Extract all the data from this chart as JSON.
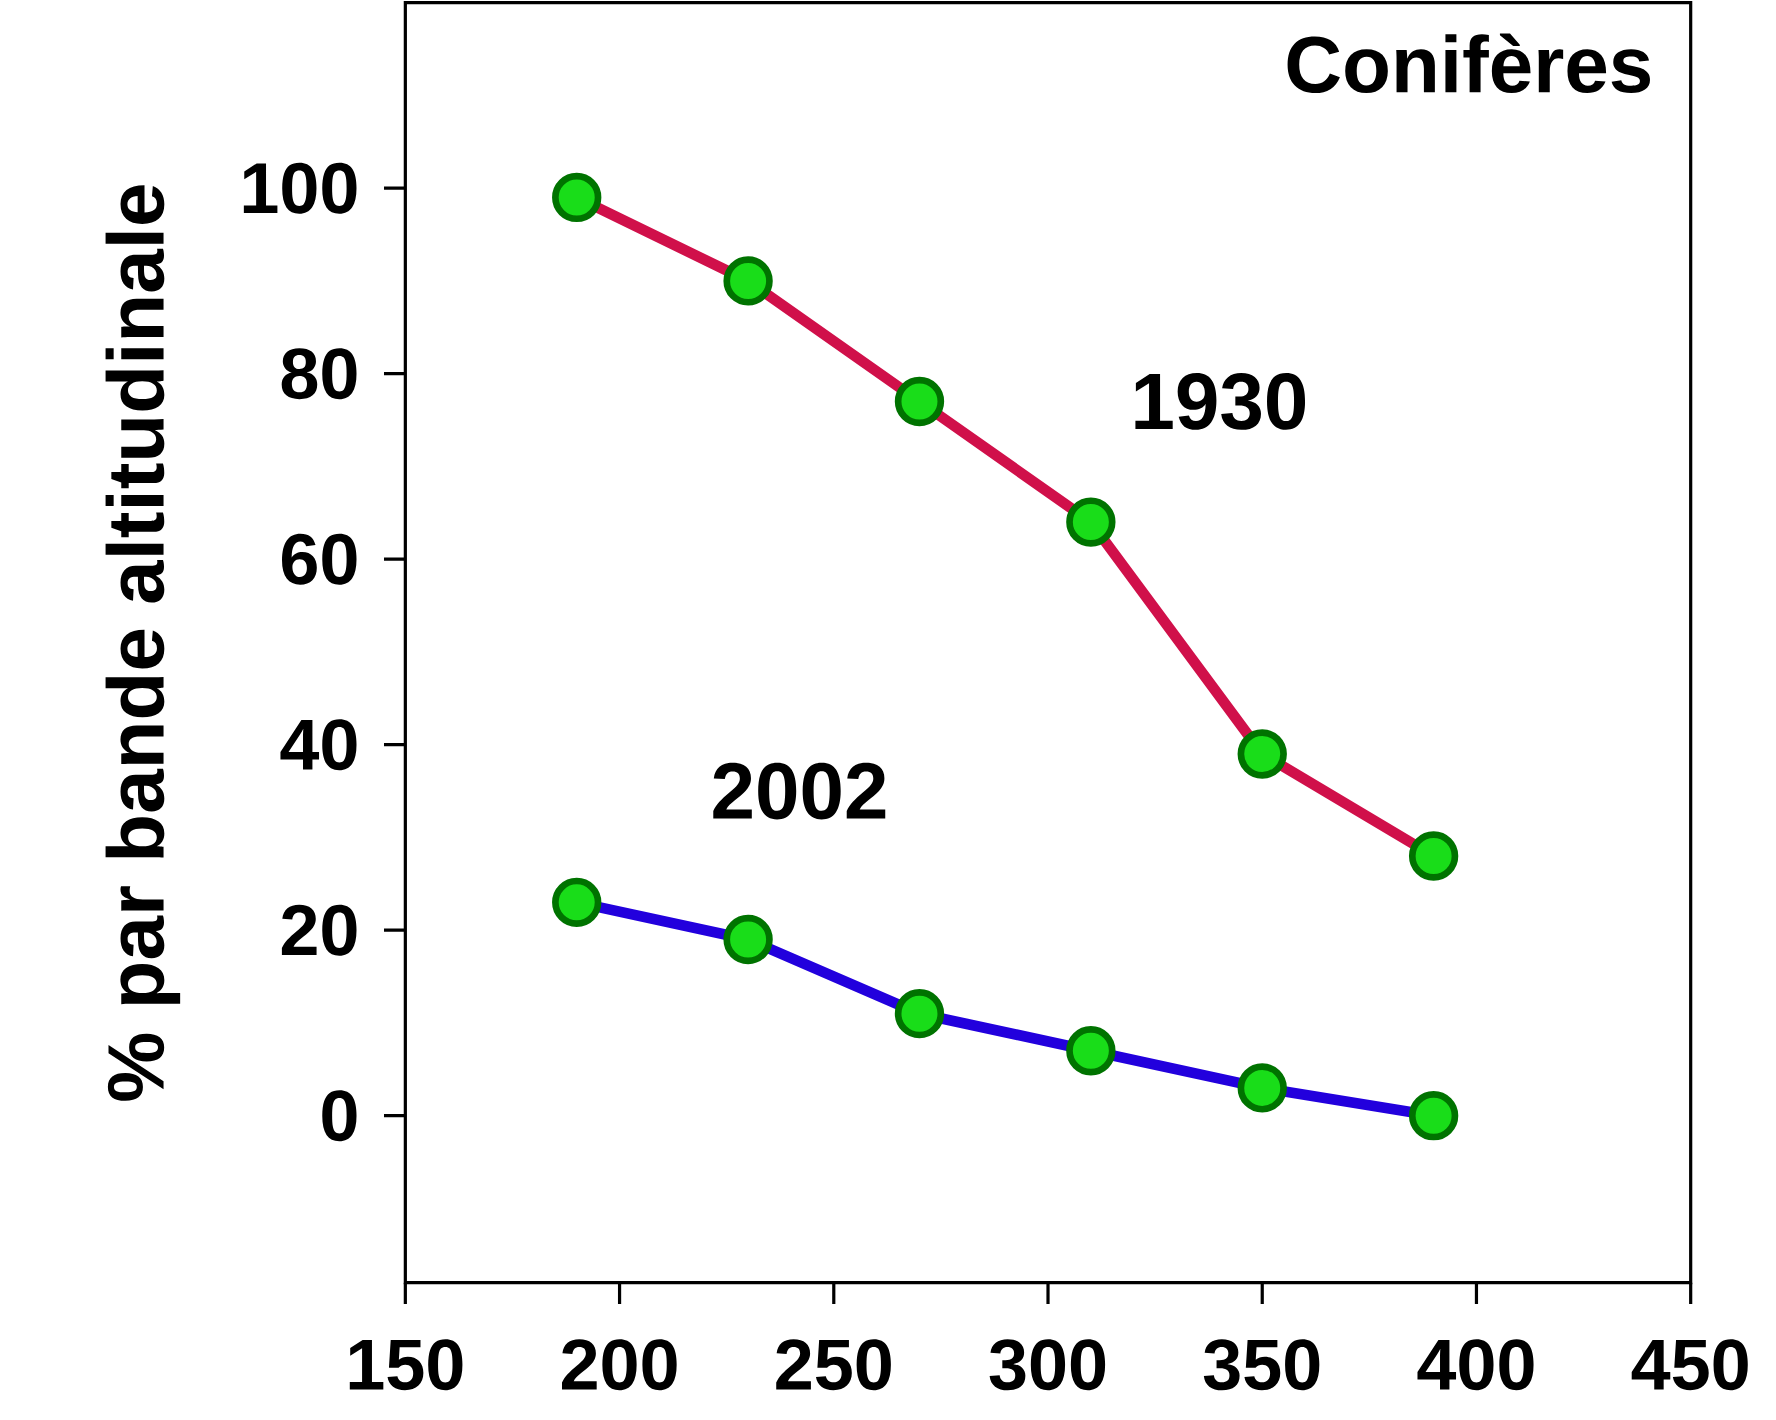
{
  "chart_data": {
    "type": "line",
    "title": "Conifères",
    "ylabel": "% par bande altitudinale",
    "x": [
      190,
      230,
      270,
      310,
      350,
      390
    ],
    "series": [
      {
        "name": "1930",
        "color": "#d0104a",
        "values": [
          99,
          90,
          77,
          64,
          39,
          28
        ]
      },
      {
        "name": "2002",
        "color": "#2200dd",
        "values": [
          23,
          19,
          11,
          7,
          3,
          0
        ]
      }
    ],
    "xlim": [
      150,
      450
    ],
    "xticks": [
      150,
      200,
      250,
      300,
      350,
      400,
      450
    ],
    "ylim": [
      -18,
      120
    ],
    "yticks": [
      0,
      20,
      40,
      60,
      80,
      100
    ],
    "marker": "circle",
    "line_style": "solid",
    "grid": false
  }
}
